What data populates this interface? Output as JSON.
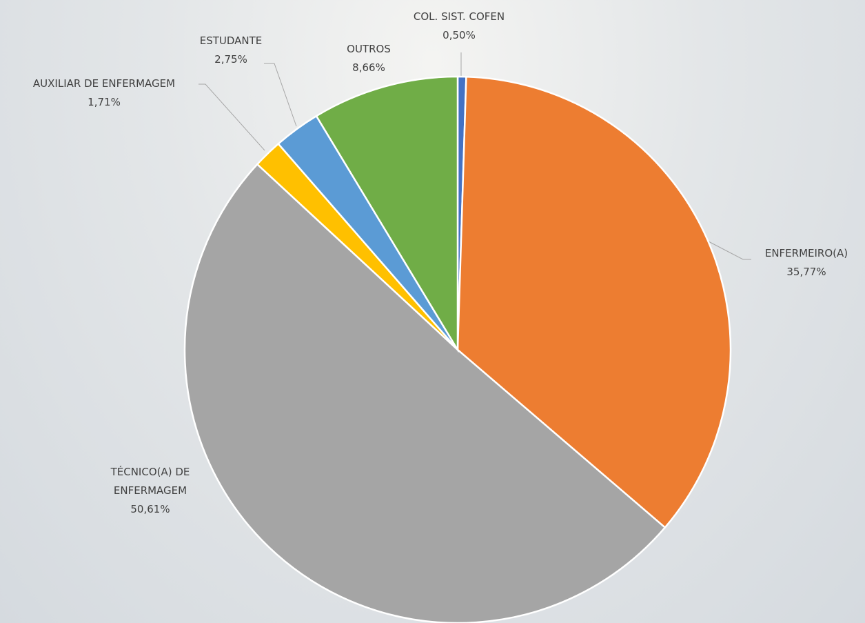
{
  "chart_data": {
    "type": "pie",
    "categories": [
      "COL. SIST. COFEN",
      "ENFERMEIRO(A)",
      "TÉCNICO(A) DE ENFERMAGEM",
      "AUXILIAR DE ENFERMAGEM",
      "ESTUDANTE",
      "OUTROS"
    ],
    "values": [
      0.5,
      35.77,
      50.61,
      1.71,
      2.75,
      8.66
    ],
    "value_labels": [
      "0,50%",
      "35,77%",
      "50,61%",
      "1,71%",
      "2,75%",
      "8,66%"
    ],
    "colors": [
      "#4472c4",
      "#ed7d31",
      "#a5a5a5",
      "#ffc000",
      "#5b9bd5",
      "#70ad47"
    ]
  }
}
